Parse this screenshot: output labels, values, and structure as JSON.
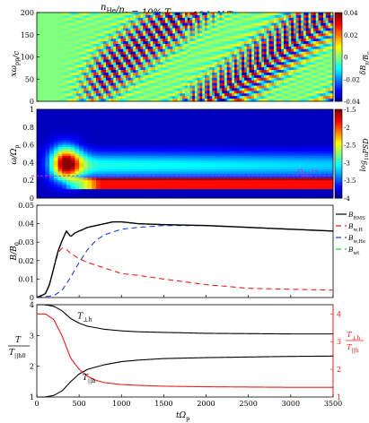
{
  "title": {
    "parts": [
      {
        "t": "n",
        "sub": "He"
      },
      {
        "t": "/n",
        "sub": "e"
      },
      {
        "t": " = 10%    T",
        "sub": "||h"
      },
      {
        "t": " = 10 keV    T",
        "sub": "⊥h"
      },
      {
        "t": "/T",
        "sub": "||h"
      },
      {
        "t": " = 4.0"
      }
    ]
  },
  "chart_data": [
    {
      "type": "heatmap",
      "panel": "field",
      "ylabel_main": "xω",
      "ylabel_sub": "pp",
      "ylabel_tail": "/c",
      "ylim": [
        0,
        200
      ],
      "yticks": [
        "0",
        "50",
        "100",
        "150",
        "200"
      ],
      "colorbar": {
        "label_main": "δB",
        "label_sub": "y",
        "label_tail": "/B",
        "label_sub2": "0",
        "min": -0.04,
        "max": 0.04,
        "ticks": [
          "0.04",
          "0.02",
          "0",
          "-0.02",
          "-0.04"
        ],
        "colormap": "jet"
      }
    },
    {
      "type": "heatmap",
      "panel": "spectrum",
      "ylabel_main": "ω/Ω",
      "ylabel_sub": "p",
      "ylim": [
        0,
        1
      ],
      "yticks": [
        "0",
        "0.2",
        "0.4",
        "0.6",
        "0.8",
        "1"
      ],
      "annotation": {
        "main": "Ω",
        "sub": "He",
        "sup": "2+",
        "y": 0.25,
        "color": "#e01fd0"
      },
      "colorbar": {
        "label": "log10PSD",
        "label_main": "log",
        "label_sub": "10",
        "label_tail": "PSD",
        "min": -4,
        "max": -1.5,
        "ticks": [
          "-1.5",
          "-2",
          "-2.5",
          "-3",
          "-3.5",
          "-4"
        ],
        "colormap": "jet"
      }
    },
    {
      "type": "line",
      "panel": "fields",
      "ylabel": "B/B0",
      "ylabel_main": "B/B",
      "ylabel_sub": "0",
      "xlim": [
        0,
        3500
      ],
      "ylim": [
        0,
        0.05
      ],
      "yticks": [
        "0",
        "0.01",
        "0.02",
        "0.03",
        "0.04",
        "0.05"
      ],
      "legend_position": "right-outside",
      "series": [
        {
          "name": "B_RMS",
          "label_main": "B",
          "label_sub": "RMS",
          "color": "#000000",
          "dash": "",
          "x": [
            0,
            100,
            150,
            200,
            250,
            300,
            350,
            400,
            450,
            500,
            600,
            700,
            800,
            900,
            1000,
            1200,
            1500,
            2000,
            2500,
            3000,
            3500
          ],
          "y": [
            0,
            0.002,
            0.007,
            0.016,
            0.025,
            0.031,
            0.036,
            0.033,
            0.035,
            0.036,
            0.038,
            0.039,
            0.04,
            0.041,
            0.041,
            0.04,
            0.0395,
            0.039,
            0.038,
            0.037,
            0.036
          ]
        },
        {
          "name": "B_w,H",
          "label_main": "B",
          "label_sub": "w,H",
          "color": "#e8211b",
          "dash": "6,4",
          "x": [
            0,
            100,
            150,
            200,
            250,
            300,
            350,
            400,
            500,
            600,
            800,
            1000,
            1200,
            1500,
            2000,
            2500,
            3000,
            3500
          ],
          "y": [
            0,
            0.002,
            0.007,
            0.016,
            0.024,
            0.027,
            0.026,
            0.024,
            0.021,
            0.019,
            0.016,
            0.013,
            0.012,
            0.01,
            0.007,
            0.005,
            0.0045,
            0.004
          ]
        },
        {
          "name": "B_w,He",
          "label_main": "B",
          "label_sub": "w,He",
          "color": "#1f3fd8",
          "dash": "6,4",
          "x": [
            0,
            200,
            300,
            400,
            500,
            600,
            700,
            800,
            1000,
            1200,
            1500,
            2000,
            2500,
            3000,
            3500
          ],
          "y": [
            0,
            0.001,
            0.004,
            0.011,
            0.019,
            0.026,
            0.031,
            0.034,
            0.037,
            0.038,
            0.039,
            0.039,
            0.038,
            0.037,
            0.036
          ]
        },
        {
          "name": "B_wt",
          "label_main": "B",
          "label_sub": "wt",
          "color": "#2bd12b",
          "dash": "6,4",
          "x": [
            0,
            100,
            150,
            200,
            250,
            300,
            350,
            400,
            450,
            500,
            600,
            700,
            800,
            900,
            1000,
            1200,
            1500,
            2000,
            2500,
            3000,
            3500
          ],
          "y": [
            0,
            0.002,
            0.007,
            0.016,
            0.025,
            0.031,
            0.036,
            0.033,
            0.035,
            0.036,
            0.038,
            0.039,
            0.04,
            0.041,
            0.041,
            0.04,
            0.0395,
            0.039,
            0.038,
            0.037,
            0.036
          ]
        }
      ]
    },
    {
      "type": "line",
      "panel": "temperature",
      "ylabel": "T/T||h0",
      "ylabel_main": "T",
      "ylabel_den": "T",
      "ylabel_den_sub": "||h0",
      "xlabel_main": "tΩ",
      "xlabel_sub": "p",
      "xlim": [
        0,
        3500
      ],
      "ylim": [
        1,
        4
      ],
      "yticks": [
        "1",
        "2",
        "3",
        "4"
      ],
      "xticks": [
        "0",
        "500",
        "1000",
        "1500",
        "2000",
        "2500",
        "3000",
        "3500"
      ],
      "right_axis": {
        "color": "#e8211b",
        "label_main": "T",
        "label_sub": "⊥h",
        "label_den": "T",
        "label_den_sub": "||h",
        "ylim": [
          1,
          4.333
        ],
        "yticks": [
          "1",
          "2",
          "3",
          "4"
        ]
      },
      "annotations": [
        {
          "main": "T",
          "sub": "⊥h",
          "x": 480,
          "y": 3.55
        },
        {
          "main": "T",
          "sub": "||h",
          "x": 540,
          "y": 1.55
        }
      ],
      "series": [
        {
          "name": "T_perp_h",
          "axis": "left",
          "color": "#000000",
          "x": [
            0,
            100,
            200,
            300,
            400,
            500,
            600,
            800,
            1000,
            1200,
            1500,
            2000,
            2500,
            3000,
            3500
          ],
          "y": [
            4.0,
            4.0,
            3.95,
            3.8,
            3.55,
            3.4,
            3.3,
            3.2,
            3.15,
            3.12,
            3.1,
            3.07,
            3.06,
            3.05,
            3.05
          ]
        },
        {
          "name": "T_par_h",
          "axis": "left",
          "color": "#000000",
          "x": [
            0,
            100,
            200,
            300,
            400,
            500,
            600,
            800,
            1000,
            1200,
            1500,
            2000,
            2500,
            3000,
            3500
          ],
          "y": [
            1.0,
            1.0,
            1.05,
            1.2,
            1.5,
            1.75,
            1.9,
            2.05,
            2.15,
            2.2,
            2.25,
            2.28,
            2.3,
            2.32,
            2.33
          ]
        },
        {
          "name": "T_perp_h/T_par_h",
          "axis": "right",
          "color": "#e8211b",
          "x": [
            0,
            100,
            200,
            300,
            400,
            500,
            600,
            700,
            800,
            1000,
            1200,
            1500,
            2000,
            2500,
            3000,
            3500
          ],
          "y": [
            4.0,
            4.0,
            3.8,
            3.2,
            2.4,
            2.0,
            1.75,
            1.6,
            1.52,
            1.45,
            1.42,
            1.39,
            1.37,
            1.36,
            1.35,
            1.35
          ]
        }
      ]
    }
  ]
}
